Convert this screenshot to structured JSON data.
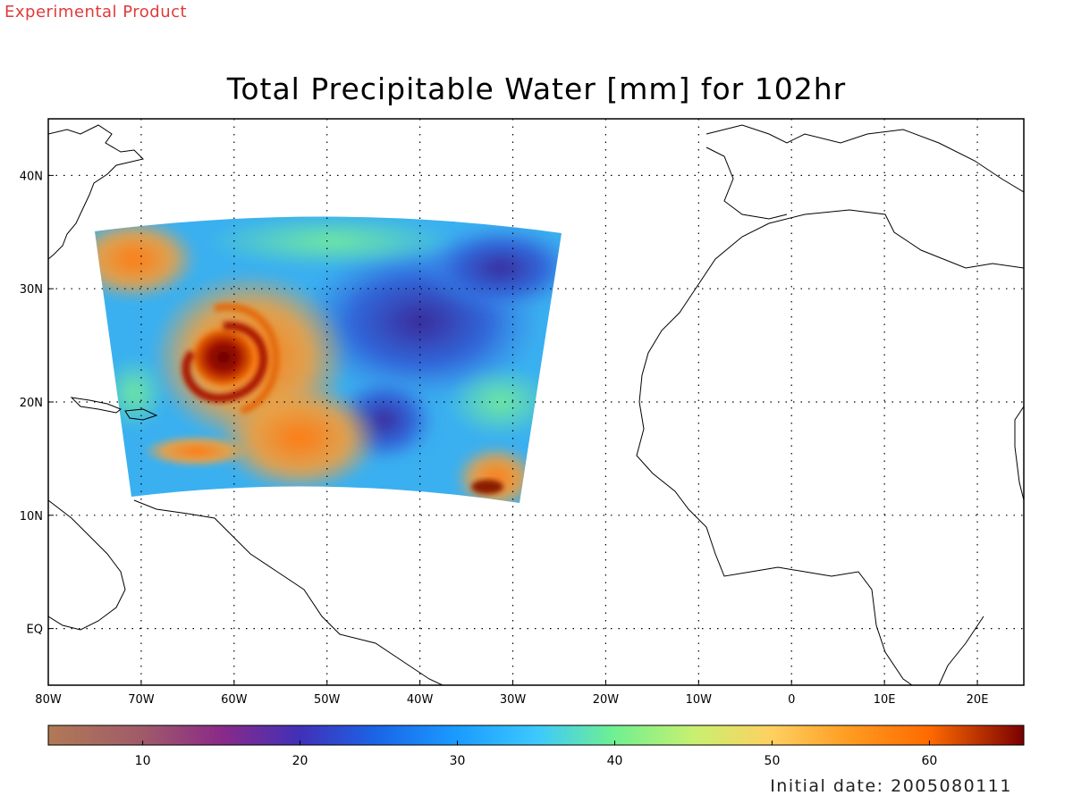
{
  "header": {
    "experimental_label": "Experimental Product",
    "title": "Total Precipitable Water [mm] for 102hr"
  },
  "footer": {
    "initial_date": "Initial date: 2005080111"
  },
  "map": {
    "lon_range": [
      -80,
      25
    ],
    "lat_range": [
      -5,
      45
    ],
    "grid_lons": [
      -70,
      -60,
      -50,
      -40,
      -30,
      -20,
      -10,
      0,
      10,
      20
    ],
    "grid_lats": [
      0,
      10,
      20,
      30,
      40
    ],
    "lon_tick_labels": [
      "80W",
      "70W",
      "60W",
      "50W",
      "40W",
      "30W",
      "20W",
      "10W",
      "0",
      "10E",
      "20E"
    ],
    "lat_tick_labels": [
      "EQ",
      "10N",
      "20N",
      "30N",
      "40N"
    ],
    "field": "Total Precipitable Water",
    "units": "mm",
    "forecast_hour": 102,
    "features": {
      "cyclone_center": {
        "lon": -61.5,
        "lat": 24.5,
        "max_tpw_mm": 65
      },
      "dry_tongue": {
        "lon": -38,
        "lat": 22,
        "min_tpw_mm": 20
      }
    }
  },
  "colorbar": {
    "range": [
      4,
      66
    ],
    "tick_values": [
      10,
      20,
      30,
      40,
      50,
      60
    ],
    "tick_labels": [
      "10",
      "20",
      "30",
      "40",
      "50",
      "60"
    ],
    "stops": [
      {
        "v": 4,
        "color": "#b07a55"
      },
      {
        "v": 10,
        "color": "#a05a6a"
      },
      {
        "v": 15,
        "color": "#8a2a88"
      },
      {
        "v": 20,
        "color": "#4030b8"
      },
      {
        "v": 25,
        "color": "#1a66e8"
      },
      {
        "v": 30,
        "color": "#1a9cff"
      },
      {
        "v": 35,
        "color": "#3cc8ff"
      },
      {
        "v": 40,
        "color": "#70f090"
      },
      {
        "v": 45,
        "color": "#c8f070"
      },
      {
        "v": 50,
        "color": "#ffd060"
      },
      {
        "v": 55,
        "color": "#ff9a20"
      },
      {
        "v": 60,
        "color": "#ff6a00"
      },
      {
        "v": 66,
        "color": "#7a0000"
      }
    ]
  }
}
